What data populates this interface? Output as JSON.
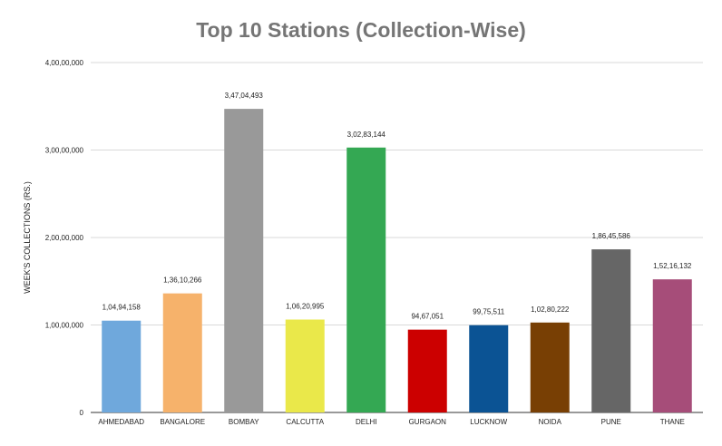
{
  "chart_data": {
    "type": "bar",
    "title": "Top 10 Stations (Collection-Wise)",
    "xlabel": "",
    "ylabel": "WEEK'S COLLECTIONS (RS.)",
    "ylim": [
      0,
      40000000
    ],
    "yticks": [
      0,
      10000000,
      20000000,
      30000000,
      40000000
    ],
    "ytick_labels": [
      "0",
      "1,00,00,000",
      "2,00,00,000",
      "3,00,00,000",
      "4,00,00,000"
    ],
    "grid": true,
    "legend": "none",
    "categories": [
      "AHMEDABAD",
      "BANGALORE",
      "BOMBAY",
      "CALCUTTA",
      "DELHI",
      "GURGAON",
      "LUCKNOW",
      "NOIDA",
      "PUNE",
      "THANE"
    ],
    "values": [
      10494158,
      13610266,
      34704493,
      10620995,
      30283144,
      9467051,
      9975511,
      10280222,
      18645586,
      15216132
    ],
    "value_labels": [
      "1,04,94,158",
      "1,36,10,266",
      "3,47,04,493",
      "1,06,20,995",
      "3,02,83,144",
      "94,67,051",
      "99,75,511",
      "1,02,80,222",
      "1,86,45,586",
      "1,52,16,132"
    ],
    "colors": [
      "#6fa8dc",
      "#f6b26b",
      "#999999",
      "#eae84a",
      "#34a853",
      "#cc0000",
      "#0b5394",
      "#783f04",
      "#666666",
      "#a64d79"
    ]
  }
}
